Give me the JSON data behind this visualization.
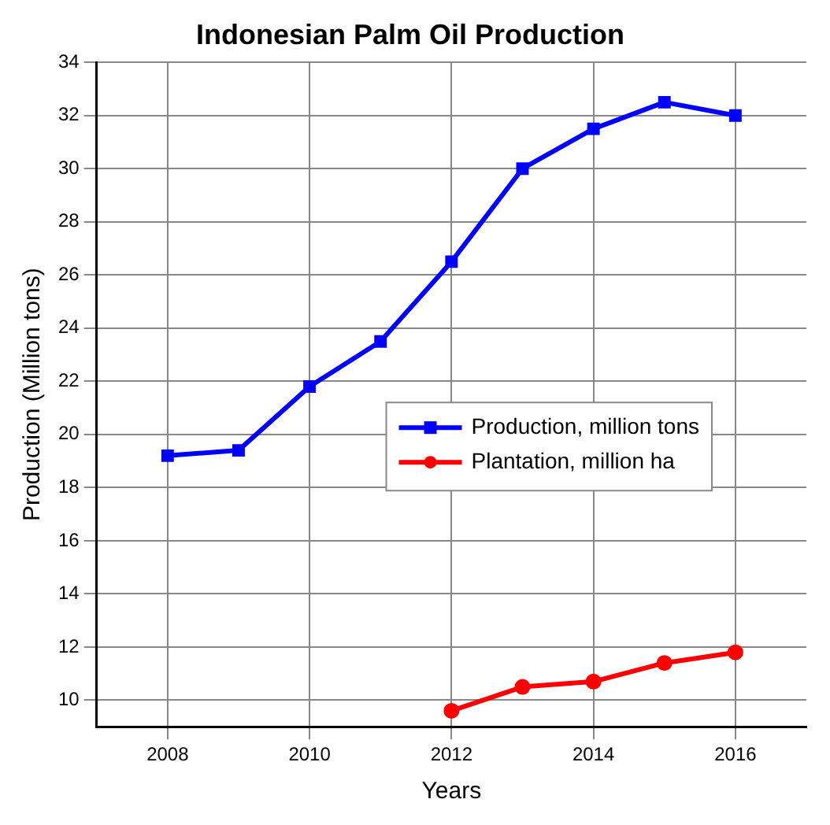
{
  "chart_data": {
    "type": "line",
    "title": "Indonesian Palm Oil Production",
    "xlabel": "Years",
    "ylabel": "Production (Million tons)",
    "x": [
      2008,
      2009,
      2010,
      2011,
      2012,
      2013,
      2014,
      2015,
      2016
    ],
    "series": [
      {
        "name": "Production, million tons",
        "color": "#0000ff",
        "marker": "square",
        "values": [
          19.2,
          19.4,
          21.8,
          23.5,
          26.5,
          30.0,
          31.5,
          32.5,
          32.0
        ]
      },
      {
        "name": "Plantation, million ha",
        "color": "#ff0000",
        "marker": "circle",
        "values": [
          null,
          null,
          null,
          null,
          9.6,
          10.5,
          10.7,
          11.4,
          11.8
        ]
      }
    ],
    "xlim": [
      2007,
      2017
    ],
    "xticks": [
      2008,
      2010,
      2012,
      2014,
      2016
    ],
    "ylim": [
      9,
      34
    ],
    "yticks": [
      10,
      12,
      14,
      16,
      18,
      20,
      22,
      24,
      26,
      28,
      30,
      32,
      34
    ],
    "grid": true,
    "legend": "center right"
  }
}
